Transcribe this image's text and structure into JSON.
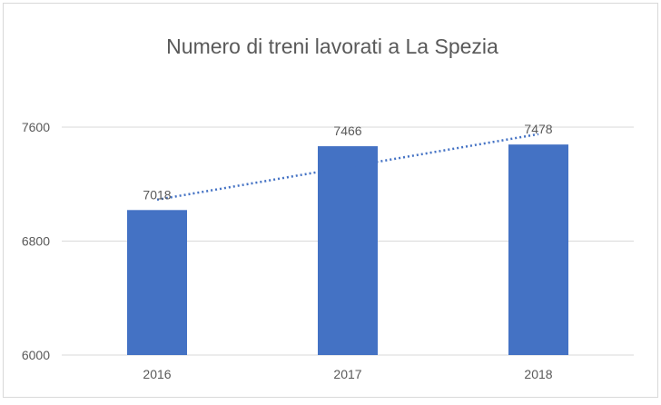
{
  "chart_data": {
    "type": "bar",
    "title": "Numero di treni lavorati a La Spezia",
    "categories": [
      "2016",
      "2017",
      "2018"
    ],
    "values": [
      7018,
      7466,
      7478
    ],
    "data_labels": [
      "7018",
      "7466",
      "7478"
    ],
    "ylim": [
      6000,
      7600
    ],
    "yticks": [
      6000,
      6800,
      7600
    ],
    "ytick_labels": [
      "6000",
      "6800",
      "7600"
    ],
    "xlabel": "",
    "ylabel": "",
    "grid": true,
    "trendline": {
      "type": "linear",
      "style": "dotted"
    },
    "colors": {
      "bar": "#4472C4",
      "trendline": "#4472C4",
      "grid": "#D9D9D9",
      "text": "#595959"
    }
  }
}
